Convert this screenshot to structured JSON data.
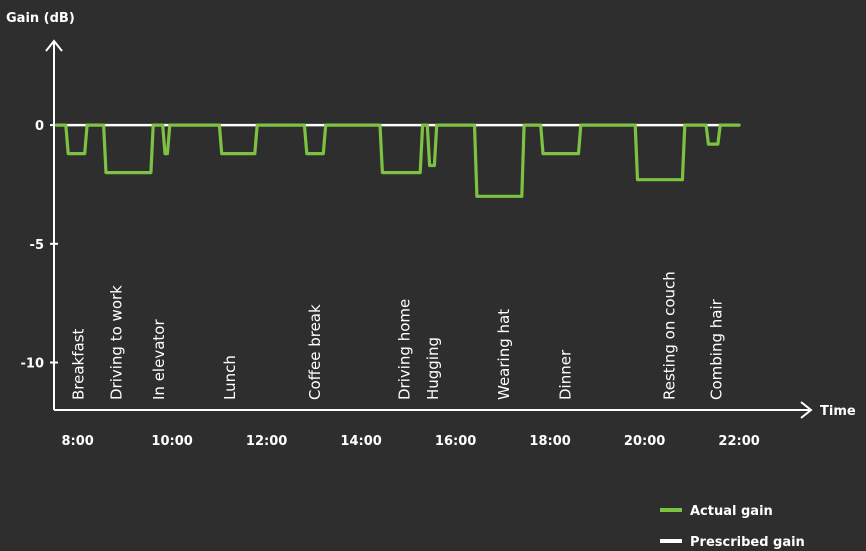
{
  "chart_data": {
    "type": "line",
    "ylabel": "Gain (dB)",
    "xlabel": "Time",
    "x_ticks": [
      "8:00",
      "10:00",
      "12:00",
      "14:00",
      "16:00",
      "18:00",
      "20:00",
      "22:00"
    ],
    "y_ticks": [
      "0",
      "-5",
      "-10"
    ],
    "y_tick_values": [
      0,
      -5,
      -10
    ],
    "xlim": [
      7.5,
      23.5
    ],
    "ylim": [
      -12,
      3.5
    ],
    "events": [
      {
        "label": "Breakfast",
        "time": 8.0
      },
      {
        "label": "Driving to work",
        "time": 8.8
      },
      {
        "label": "In elevator",
        "time": 9.7
      },
      {
        "label": "Lunch",
        "time": 11.2
      },
      {
        "label": "Coffee break",
        "time": 13.0
      },
      {
        "label": "Driving home",
        "time": 14.9
      },
      {
        "label": "Hugging",
        "time": 15.5
      },
      {
        "label": "Wearing hat",
        "time": 17.0
      },
      {
        "label": "Dinner",
        "time": 18.3
      },
      {
        "label": "Resting on couch",
        "time": 20.5
      },
      {
        "label": "Combing hair",
        "time": 21.5
      }
    ],
    "series": [
      {
        "name": "Actual gain",
        "color": "#7dc242",
        "x": [
          7.55,
          7.75,
          7.8,
          8.15,
          8.2,
          8.55,
          8.6,
          8.75,
          8.8,
          9.55,
          9.6,
          9.8,
          9.85,
          9.9,
          9.95,
          10.15,
          10.2,
          11.0,
          11.05,
          11.75,
          11.8,
          12.8,
          12.85,
          13.2,
          13.25,
          14.4,
          14.45,
          15.25,
          15.3,
          15.4,
          15.45,
          15.55,
          15.6,
          16.4,
          16.45,
          17.4,
          17.45,
          17.8,
          17.85,
          18.6,
          18.65,
          19.8,
          19.85,
          20.8,
          20.85,
          21.3,
          21.35,
          21.55,
          21.6,
          22.0
        ],
        "y": [
          0,
          0,
          -1.2,
          -1.2,
          0,
          0,
          -2,
          -2,
          -2,
          -2,
          0,
          0,
          -1.2,
          -1.2,
          0,
          0,
          0,
          0,
          -1.2,
          -1.2,
          0,
          0,
          -1.2,
          -1.2,
          0,
          0,
          -2,
          -2,
          0,
          0,
          -1.7,
          -1.7,
          0,
          0,
          -3,
          -3,
          0,
          0,
          -1.2,
          -1.2,
          0,
          0,
          -2.3,
          -2.3,
          0,
          0,
          -0.8,
          -0.8,
          0,
          0
        ]
      },
      {
        "name": "Prescribed gain",
        "color": "#ffffff",
        "x": [
          7.55,
          22.0
        ],
        "y": [
          0,
          0
        ]
      }
    ],
    "legend": [
      {
        "label": "Actual gain",
        "color": "#7dc242"
      },
      {
        "label": "Prescribed gain",
        "color": "#ffffff"
      }
    ],
    "grid": false,
    "legend_position": "bottom-right"
  }
}
